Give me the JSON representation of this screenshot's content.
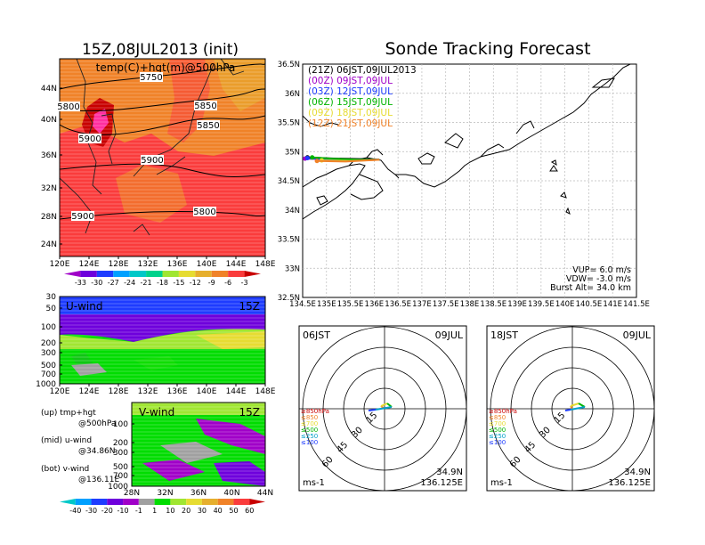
{
  "left_title": "15Z,08JUL2013 (init)",
  "right_title": "Sonde Tracking Forecast",
  "map_panel": {
    "label": "temp(C)+hgt(m)@500hPa",
    "x_ticks": [
      "120E",
      "124E",
      "128E",
      "132E",
      "136E",
      "140E",
      "144E",
      "148E"
    ],
    "y_ticks": [
      "24N",
      "28N",
      "32N",
      "36N",
      "40N",
      "44N"
    ],
    "contour_labels": [
      "5750",
      "5800",
      "5850",
      "5850",
      "5900",
      "5900",
      "5900",
      "5800"
    ],
    "colorbar_labels": [
      "-33",
      "-30",
      "-27",
      "-24",
      "-21",
      "-18",
      "-15",
      "-12",
      "-9",
      "-6",
      "-3"
    ],
    "colorbar_colors": [
      "#a000c8",
      "#6e00dc",
      "#1e3cff",
      "#00a0ff",
      "#00c8c8",
      "#00d28c",
      "#a0e632",
      "#e6dc32",
      "#e6af2d",
      "#f08228",
      "#fa3c3c",
      "#c80000"
    ]
  },
  "uwind_panel": {
    "label": "U-wind",
    "time": "15Z",
    "y_ticks": [
      "30",
      "50",
      "100",
      "200",
      "300",
      "500",
      "700",
      "1000"
    ],
    "x_ticks": [
      "120E",
      "124E",
      "128E",
      "132E",
      "136E",
      "140E",
      "144E",
      "148E"
    ]
  },
  "vwind_panel": {
    "label": "V-wind",
    "time": "15Z",
    "y_ticks": [
      "100",
      "200",
      "300",
      "500",
      "700",
      "1000"
    ],
    "x_ticks": [
      "28N",
      "32N",
      "36N",
      "40N",
      "44N"
    ]
  },
  "notes": [
    {
      "a": "(up) tmp+hgt",
      "b": "@500hPa"
    },
    {
      "a": "(mid) u-wind",
      "b": "@34.86N"
    },
    {
      "a": "(bot) v-wind",
      "b": "@136.11E"
    }
  ],
  "wind_colorbar": {
    "labels": [
      "-40",
      "-30",
      "-20",
      "-10",
      "-1",
      "1",
      "10",
      "20",
      "30",
      "40",
      "50",
      "60"
    ],
    "colors": [
      "#00c8c8",
      "#00a0ff",
      "#1e3cff",
      "#6e00dc",
      "#a000c8",
      "#a0a0a0",
      "#00dc00",
      "#a0e632",
      "#e6dc32",
      "#e6af2d",
      "#f08228",
      "#fa3c3c",
      "#c80000"
    ]
  },
  "track_panel": {
    "legend": [
      {
        "text": "(21Z) 06JST,09JUL2013",
        "color": "#000000"
      },
      {
        "text": "(00Z) 09JST,09JUL",
        "color": "#a000c8"
      },
      {
        "text": "(03Z) 12JST,09JUL",
        "color": "#1e3cff"
      },
      {
        "text": "(06Z) 15JST,09JUL",
        "color": "#00b400"
      },
      {
        "text": "(09Z) 18JST,09JUL",
        "color": "#e6dc32"
      },
      {
        "text": "(12Z) 21JST,09JUL",
        "color": "#f08228"
      }
    ],
    "x_ticks": [
      "134.5E",
      "135E",
      "135.5E",
      "136E",
      "136.5E",
      "137E",
      "137.5E",
      "138E",
      "138.5E",
      "139E",
      "139.5E",
      "140E",
      "140.5E",
      "141E",
      "141.5E"
    ],
    "y_ticks": [
      "36.5N",
      "36N",
      "35.5N",
      "35N",
      "34.5N",
      "34N",
      "33.5N",
      "33N",
      "32.5N"
    ],
    "info": [
      "VUP= 6.0 m/s",
      "VDW= -3.0 m/s",
      "Burst Alt= 34.0 km"
    ]
  },
  "hodographs": [
    {
      "time": "06JST",
      "date": "09JUL",
      "unit": "ms-1",
      "lat": "34.9N",
      "lon": "136.125E",
      "rings": [
        "15",
        "30",
        "45",
        "60"
      ],
      "levels": [
        "≥850hPa",
        "≤850",
        "≤700",
        "≤500",
        "≤250",
        "≤100"
      ]
    },
    {
      "time": "18JST",
      "date": "09JUL",
      "unit": "ms-1",
      "lat": "34.9N",
      "lon": "136.125E",
      "rings": [
        "15",
        "30",
        "45",
        "60"
      ],
      "levels": [
        "≥850hPa",
        "≤850",
        "≤700",
        "≤500",
        "≤250",
        "≤100"
      ]
    }
  ],
  "level_colors": [
    "#c80000",
    "#f08228",
    "#e6dc32",
    "#00b400",
    "#00a0c8",
    "#1e3cff"
  ],
  "chart_data": [
    {
      "type": "heatmap",
      "title": "15Z,08JUL2013 (init)",
      "label": "temp(C)+hgt(m)@500hPa",
      "xlim": [
        "120E",
        "148E"
      ],
      "ylim": [
        "24N",
        "44N"
      ],
      "contours": [
        5750,
        5800,
        5850,
        5900
      ],
      "colorbar": [
        -33,
        -30,
        -27,
        -24,
        -21,
        -18,
        -15,
        -12,
        -9,
        -6,
        -3
      ]
    },
    {
      "type": "heatmap",
      "label": "U-wind",
      "time": "15Z",
      "x": "120E-148E",
      "y_levels_hPa": [
        30,
        50,
        100,
        200,
        300,
        500,
        700,
        1000
      ],
      "colorbar": [
        -40,
        -30,
        -20,
        -10,
        -1,
        1,
        10,
        20,
        30,
        40,
        50,
        60
      ]
    },
    {
      "type": "heatmap",
      "label": "V-wind",
      "time": "15Z",
      "x": "28N-44N",
      "y_levels_hPa": [
        100,
        200,
        300,
        500,
        700,
        1000
      ],
      "colorbar": [
        -40,
        -30,
        -20,
        -10,
        -1,
        1,
        10,
        20,
        30,
        40,
        50,
        60
      ]
    },
    {
      "type": "line",
      "title": "Sonde Tracking Forecast",
      "xlim": [
        134.5,
        141.5
      ],
      "ylim": [
        32.5,
        36.5
      ],
      "series": [
        {
          "name": "(21Z) 06JST,09JUL2013",
          "lon": [
            136.11,
            135.8,
            135.2,
            134.6
          ],
          "lat": [
            34.86,
            34.87,
            34.88,
            34.9
          ]
        },
        {
          "name": "(00Z) 09JST,09JUL",
          "lon": [
            136.11,
            135.7,
            135.0,
            134.55
          ],
          "lat": [
            34.86,
            34.85,
            34.87,
            34.88
          ]
        },
        {
          "name": "(03Z) 12JST,09JUL",
          "lon": [
            136.11,
            135.6,
            135.0,
            134.6
          ],
          "lat": [
            34.86,
            34.86,
            34.87,
            34.89
          ]
        },
        {
          "name": "(06Z) 15JST,09JUL",
          "lon": [
            136.11,
            135.7,
            135.1,
            134.7
          ],
          "lat": [
            34.86,
            34.86,
            34.88,
            34.9
          ]
        },
        {
          "name": "(09Z) 18JST,09JUL",
          "lon": [
            136.11,
            135.5,
            134.9
          ],
          "lat": [
            34.86,
            34.84,
            34.85
          ]
        },
        {
          "name": "(12Z) 21JST,09JUL",
          "lon": [
            136.11,
            135.4,
            134.8
          ],
          "lat": [
            34.86,
            34.83,
            34.84
          ]
        }
      ],
      "info": {
        "VUP_m_s": 6.0,
        "VDW_m_s": -3.0,
        "burst_alt_km": 34.0
      }
    },
    {
      "type": "scatter",
      "title": "06JST 09JUL hodograph",
      "rings_ms": [
        15,
        30,
        45,
        60
      ],
      "location": [
        "34.9N",
        "136.125E"
      ]
    },
    {
      "type": "scatter",
      "title": "18JST 09JUL hodograph",
      "rings_ms": [
        15,
        30,
        45,
        60
      ],
      "location": [
        "34.9N",
        "136.125E"
      ]
    }
  ]
}
